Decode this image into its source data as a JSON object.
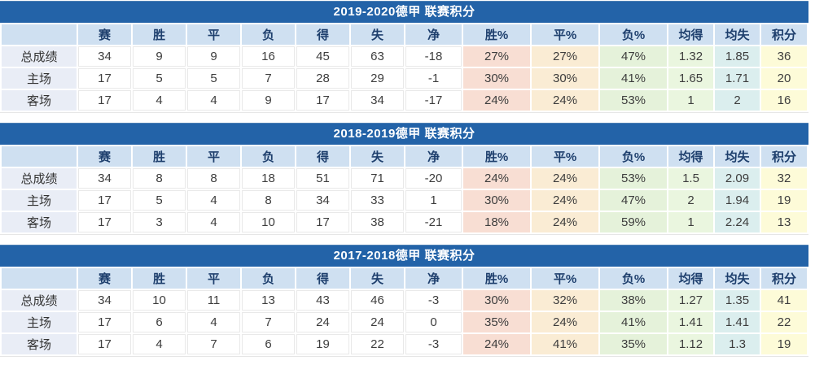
{
  "columns": [
    "",
    "赛",
    "胜",
    "平",
    "负",
    "得",
    "失",
    "净",
    "胜%",
    "平%",
    "负%",
    "均得",
    "均失",
    "积分"
  ],
  "tables": [
    {
      "title": "2019-2020德甲 联赛积分",
      "rows": [
        {
          "label": "总成绩",
          "values": [
            "34",
            "9",
            "9",
            "16",
            "45",
            "63",
            "-18",
            "27%",
            "27%",
            "47%",
            "1.32",
            "1.85",
            "36"
          ]
        },
        {
          "label": "主场",
          "values": [
            "17",
            "5",
            "5",
            "7",
            "28",
            "29",
            "-1",
            "30%",
            "30%",
            "41%",
            "1.65",
            "1.71",
            "20"
          ]
        },
        {
          "label": "客场",
          "values": [
            "17",
            "4",
            "4",
            "9",
            "17",
            "34",
            "-17",
            "24%",
            "24%",
            "53%",
            "1",
            "2",
            "16"
          ]
        }
      ]
    },
    {
      "title": "2018-2019德甲 联赛积分",
      "rows": [
        {
          "label": "总成绩",
          "values": [
            "34",
            "8",
            "8",
            "18",
            "51",
            "71",
            "-20",
            "24%",
            "24%",
            "53%",
            "1.5",
            "2.09",
            "32"
          ]
        },
        {
          "label": "主场",
          "values": [
            "17",
            "5",
            "4",
            "8",
            "34",
            "33",
            "1",
            "30%",
            "24%",
            "47%",
            "2",
            "1.94",
            "19"
          ]
        },
        {
          "label": "客场",
          "values": [
            "17",
            "3",
            "4",
            "10",
            "17",
            "38",
            "-21",
            "18%",
            "24%",
            "59%",
            "1",
            "2.24",
            "13"
          ]
        }
      ]
    },
    {
      "title": "2017-2018德甲 联赛积分",
      "rows": [
        {
          "label": "总成绩",
          "values": [
            "34",
            "10",
            "11",
            "13",
            "43",
            "46",
            "-3",
            "30%",
            "32%",
            "38%",
            "1.27",
            "1.35",
            "41"
          ]
        },
        {
          "label": "主场",
          "values": [
            "17",
            "6",
            "4",
            "7",
            "24",
            "24",
            "0",
            "35%",
            "24%",
            "41%",
            "1.41",
            "1.41",
            "22"
          ]
        },
        {
          "label": "客场",
          "values": [
            "17",
            "4",
            "7",
            "6",
            "19",
            "22",
            "-3",
            "24%",
            "41%",
            "35%",
            "1.12",
            "1.3",
            "19"
          ]
        }
      ]
    }
  ],
  "colors": {
    "title_bar": "#2363a8",
    "header_bg": "#cfe0f1",
    "header_text": "#1e3f6d",
    "label_bg": "#e9edf6",
    "win_pct_bg": "#f8ded3",
    "draw_pct_bg": "#faecd4",
    "loss_pct_bg": "#e5f2da",
    "avg_for_bg": "#eaf6df",
    "avg_against_bg": "#dbeeee",
    "points_bg": "#fdfbd8"
  }
}
